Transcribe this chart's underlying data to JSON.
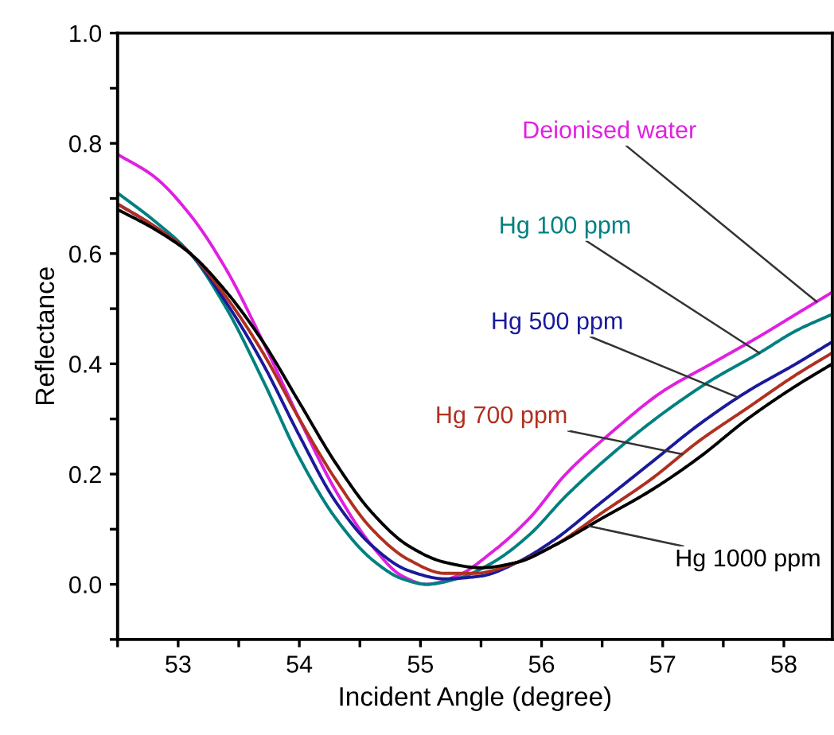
{
  "chart_data": {
    "type": "line",
    "xlabel": "Incident Angle (degree)",
    "ylabel": "Reflectance",
    "xlim": [
      52.5,
      58.4
    ],
    "ylim": [
      -0.1,
      1.0
    ],
    "xticks": [
      {
        "value": 52.5,
        "label": null
      },
      53,
      {
        "value": 53.5,
        "label": null
      },
      54,
      {
        "value": 54.5,
        "label": null
      },
      55,
      {
        "value": 55.5,
        "label": null
      },
      56,
      {
        "value": 56.5,
        "label": null
      },
      57,
      {
        "value": 57.5,
        "label": null
      },
      58
    ],
    "yticks": [
      {
        "value": -0.1,
        "label": null
      },
      {
        "value": 0,
        "label": "0.0"
      },
      {
        "value": 0.1,
        "label": null
      },
      {
        "value": 0.2,
        "label": "0.2"
      },
      {
        "value": 0.3,
        "label": null
      },
      {
        "value": 0.4,
        "label": "0.4"
      },
      {
        "value": 0.5,
        "label": null
      },
      {
        "value": 0.6,
        "label": "0.6"
      },
      {
        "value": 0.7,
        "label": null
      },
      {
        "value": 0.8,
        "label": "0.8"
      },
      {
        "value": 0.9,
        "label": null
      },
      {
        "value": 1.0,
        "label": "1.0"
      }
    ],
    "grid": false,
    "legend": false,
    "marker": "none",
    "line_style": "solid",
    "series": [
      {
        "name": "Deionised water",
        "color": "#e020e0",
        "x": [
          52.5,
          52.8,
          53.1,
          53.4,
          53.7,
          54.0,
          54.3,
          54.6,
          54.85,
          55.05,
          55.3,
          55.6,
          55.9,
          56.2,
          56.6,
          57.0,
          57.4,
          57.8,
          58.1,
          58.4
        ],
        "values": [
          0.78,
          0.74,
          0.67,
          0.57,
          0.44,
          0.3,
          0.17,
          0.07,
          0.015,
          0.0,
          0.015,
          0.06,
          0.12,
          0.2,
          0.28,
          0.35,
          0.4,
          0.45,
          0.49,
          0.53
        ]
      },
      {
        "name": "Hg 100 ppm",
        "color": "#008080",
        "x": [
          52.5,
          52.8,
          53.1,
          53.4,
          53.7,
          54.0,
          54.3,
          54.6,
          54.85,
          55.05,
          55.3,
          55.6,
          55.9,
          56.2,
          56.6,
          57.0,
          57.4,
          57.8,
          58.1,
          58.4
        ],
        "values": [
          0.71,
          0.66,
          0.6,
          0.5,
          0.37,
          0.23,
          0.12,
          0.045,
          0.01,
          0.0,
          0.01,
          0.04,
          0.09,
          0.16,
          0.24,
          0.31,
          0.37,
          0.42,
          0.46,
          0.49
        ]
      },
      {
        "name": "Hg 500 ppm",
        "color": "#1a1a9a",
        "x": [
          52.5,
          52.8,
          53.1,
          53.4,
          53.7,
          54.0,
          54.3,
          54.6,
          54.9,
          55.2,
          55.5,
          55.8,
          56.1,
          56.5,
          56.9,
          57.3,
          57.7,
          58.1,
          58.4
        ],
        "values": [
          0.69,
          0.65,
          0.6,
          0.51,
          0.4,
          0.27,
          0.15,
          0.07,
          0.025,
          0.01,
          0.015,
          0.04,
          0.08,
          0.15,
          0.22,
          0.29,
          0.35,
          0.4,
          0.44
        ]
      },
      {
        "name": "Hg 700 ppm",
        "color": "#b03020",
        "x": [
          52.5,
          52.8,
          53.1,
          53.4,
          53.7,
          54.0,
          54.3,
          54.6,
          54.9,
          55.2,
          55.45,
          55.8,
          56.1,
          56.5,
          56.9,
          57.3,
          57.7,
          58.1,
          58.4
        ],
        "values": [
          0.69,
          0.65,
          0.6,
          0.52,
          0.42,
          0.3,
          0.19,
          0.1,
          0.045,
          0.02,
          0.02,
          0.04,
          0.07,
          0.13,
          0.19,
          0.26,
          0.32,
          0.38,
          0.42
        ]
      },
      {
        "name": "Hg 1000 ppm",
        "color": "#000000",
        "x": [
          52.5,
          52.8,
          53.1,
          53.4,
          53.7,
          54.0,
          54.3,
          54.6,
          54.9,
          55.2,
          55.5,
          55.8,
          56.1,
          56.5,
          56.9,
          57.3,
          57.7,
          58.1,
          58.4
        ],
        "values": [
          0.68,
          0.645,
          0.6,
          0.53,
          0.44,
          0.33,
          0.22,
          0.13,
          0.07,
          0.04,
          0.03,
          0.04,
          0.07,
          0.12,
          0.17,
          0.23,
          0.3,
          0.36,
          0.4
        ]
      }
    ]
  }
}
